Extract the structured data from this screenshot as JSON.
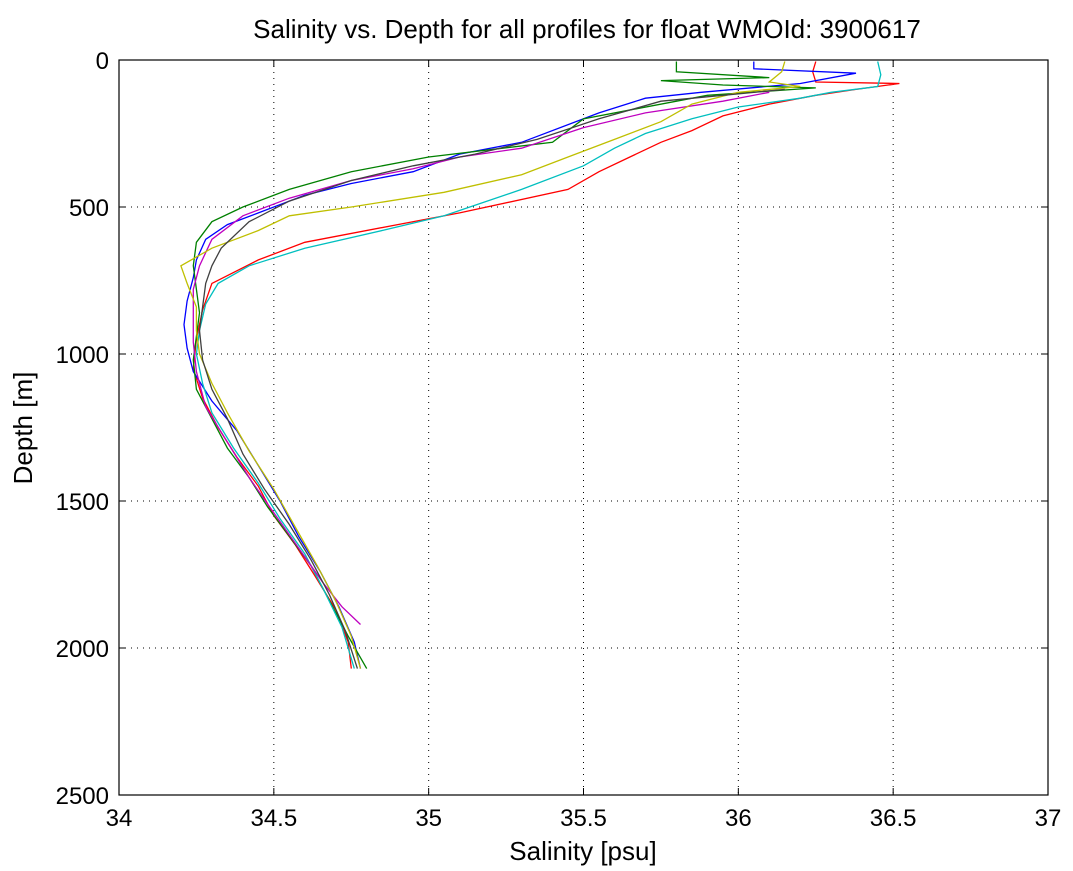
{
  "chart_data": {
    "type": "line",
    "title": "Salinity vs. Depth for all profiles for float WMOId: 3900617",
    "xlabel": "Salinity [psu]",
    "ylabel": "Depth [m]",
    "xlim": [
      34,
      37
    ],
    "ylim": [
      0,
      2500
    ],
    "y_reversed": true,
    "x_ticks": [
      "34",
      "34.5",
      "35",
      "35.5",
      "36",
      "36.5",
      "37"
    ],
    "y_ticks": [
      "0",
      "500",
      "1000",
      "1500",
      "2000",
      "2500"
    ],
    "grid": true,
    "series": [
      {
        "color": "#ff0000",
        "points": [
          [
            36.25,
            5
          ],
          [
            36.24,
            40
          ],
          [
            36.25,
            75
          ],
          [
            36.52,
            80
          ],
          [
            36.38,
            100
          ],
          [
            36.25,
            120
          ],
          [
            36.1,
            150
          ],
          [
            35.95,
            190
          ],
          [
            35.85,
            240
          ],
          [
            35.75,
            280
          ],
          [
            35.65,
            330
          ],
          [
            35.55,
            380
          ],
          [
            35.45,
            440
          ],
          [
            35.1,
            520
          ],
          [
            34.9,
            560
          ],
          [
            34.6,
            620
          ],
          [
            34.45,
            680
          ],
          [
            34.3,
            760
          ],
          [
            34.27,
            850
          ],
          [
            34.25,
            950
          ],
          [
            34.24,
            1050
          ],
          [
            34.27,
            1150
          ],
          [
            34.32,
            1250
          ],
          [
            34.38,
            1350
          ],
          [
            34.45,
            1450
          ],
          [
            34.5,
            1550
          ],
          [
            34.57,
            1650
          ],
          [
            34.63,
            1750
          ],
          [
            34.7,
            1870
          ],
          [
            34.74,
            1980
          ],
          [
            34.75,
            2070
          ]
        ]
      },
      {
        "color": "#0000ff",
        "points": [
          [
            36.05,
            5
          ],
          [
            36.05,
            30
          ],
          [
            36.38,
            45
          ],
          [
            36.2,
            80
          ],
          [
            35.88,
            110
          ],
          [
            35.7,
            130
          ],
          [
            35.55,
            180
          ],
          [
            35.3,
            280
          ],
          [
            35.1,
            320
          ],
          [
            34.95,
            380
          ],
          [
            34.75,
            420
          ],
          [
            34.6,
            460
          ],
          [
            34.45,
            520
          ],
          [
            34.35,
            560
          ],
          [
            34.28,
            610
          ],
          [
            34.25,
            680
          ],
          [
            34.24,
            740
          ],
          [
            34.22,
            820
          ],
          [
            34.21,
            900
          ],
          [
            34.22,
            980
          ],
          [
            34.24,
            1060
          ],
          [
            34.3,
            1160
          ],
          [
            34.38,
            1260
          ],
          [
            34.45,
            1380
          ],
          [
            34.52,
            1500
          ],
          [
            34.58,
            1620
          ],
          [
            34.65,
            1740
          ],
          [
            34.71,
            1860
          ],
          [
            34.76,
            1980
          ],
          [
            34.78,
            2070
          ]
        ]
      },
      {
        "color": "#008000",
        "points": [
          [
            35.8,
            5
          ],
          [
            35.8,
            40
          ],
          [
            36.1,
            60
          ],
          [
            35.75,
            70
          ],
          [
            35.95,
            85
          ],
          [
            36.25,
            95
          ],
          [
            35.9,
            120
          ],
          [
            35.5,
            200
          ],
          [
            35.4,
            280
          ],
          [
            35.0,
            330
          ],
          [
            34.75,
            380
          ],
          [
            34.55,
            440
          ],
          [
            34.4,
            500
          ],
          [
            34.3,
            550
          ],
          [
            34.25,
            620
          ],
          [
            34.24,
            700
          ],
          [
            34.25,
            780
          ],
          [
            34.26,
            860
          ],
          [
            34.25,
            940
          ],
          [
            34.24,
            1020
          ],
          [
            34.25,
            1120
          ],
          [
            34.3,
            1220
          ],
          [
            34.35,
            1320
          ],
          [
            34.42,
            1420
          ],
          [
            34.48,
            1520
          ],
          [
            34.55,
            1620
          ],
          [
            34.62,
            1720
          ],
          [
            34.68,
            1840
          ],
          [
            34.74,
            1960
          ],
          [
            34.8,
            2070
          ]
        ]
      },
      {
        "color": "#00bfbf",
        "points": [
          [
            36.45,
            5
          ],
          [
            36.46,
            50
          ],
          [
            36.45,
            90
          ],
          [
            36.3,
            110
          ],
          [
            36.2,
            130
          ],
          [
            36.0,
            160
          ],
          [
            35.85,
            200
          ],
          [
            35.7,
            250
          ],
          [
            35.6,
            300
          ],
          [
            35.5,
            360
          ],
          [
            35.3,
            440
          ],
          [
            35.05,
            530
          ],
          [
            34.85,
            580
          ],
          [
            34.6,
            640
          ],
          [
            34.42,
            700
          ],
          [
            34.32,
            760
          ],
          [
            34.28,
            830
          ],
          [
            34.26,
            920
          ],
          [
            34.25,
            1000
          ],
          [
            34.27,
            1100
          ],
          [
            34.3,
            1200
          ],
          [
            34.37,
            1320
          ],
          [
            34.45,
            1440
          ],
          [
            34.52,
            1560
          ],
          [
            34.6,
            1680
          ],
          [
            34.66,
            1800
          ],
          [
            34.72,
            1930
          ],
          [
            34.76,
            2070
          ]
        ]
      },
      {
        "color": "#bf00bf",
        "points": [
          [
            36.1,
            110
          ],
          [
            35.95,
            140
          ],
          [
            35.7,
            180
          ],
          [
            35.5,
            230
          ],
          [
            35.3,
            300
          ],
          [
            35.1,
            330
          ],
          [
            34.95,
            370
          ],
          [
            34.75,
            410
          ],
          [
            34.55,
            470
          ],
          [
            34.4,
            530
          ],
          [
            34.3,
            610
          ],
          [
            34.26,
            700
          ],
          [
            34.24,
            780
          ],
          [
            34.24,
            860
          ],
          [
            34.24,
            960
          ],
          [
            34.25,
            1060
          ],
          [
            34.28,
            1180
          ],
          [
            34.35,
            1300
          ],
          [
            34.42,
            1420
          ],
          [
            34.5,
            1540
          ],
          [
            34.58,
            1660
          ],
          [
            34.66,
            1780
          ],
          [
            34.72,
            1860
          ],
          [
            34.78,
            1920
          ]
        ]
      },
      {
        "color": "#bfbf00",
        "points": [
          [
            36.15,
            5
          ],
          [
            36.14,
            40
          ],
          [
            36.1,
            75
          ],
          [
            36.2,
            90
          ],
          [
            36.0,
            110
          ],
          [
            35.85,
            150
          ],
          [
            35.75,
            210
          ],
          [
            35.6,
            270
          ],
          [
            35.45,
            330
          ],
          [
            35.3,
            390
          ],
          [
            35.05,
            450
          ],
          [
            34.75,
            500
          ],
          [
            34.55,
            530
          ],
          [
            34.45,
            580
          ],
          [
            34.3,
            640
          ],
          [
            34.2,
            700
          ],
          [
            34.22,
            760
          ],
          [
            34.25,
            840
          ],
          [
            34.25,
            920
          ],
          [
            34.26,
            1000
          ],
          [
            34.3,
            1100
          ],
          [
            34.35,
            1200
          ],
          [
            34.42,
            1330
          ],
          [
            34.5,
            1460
          ],
          [
            34.57,
            1590
          ],
          [
            34.64,
            1720
          ],
          [
            34.7,
            1840
          ],
          [
            34.75,
            1960
          ],
          [
            34.78,
            2070
          ]
        ]
      },
      {
        "color": "#404040",
        "points": [
          [
            36.15,
            100
          ],
          [
            35.95,
            120
          ],
          [
            35.75,
            140
          ],
          [
            35.55,
            200
          ],
          [
            35.35,
            270
          ],
          [
            35.15,
            320
          ],
          [
            34.95,
            360
          ],
          [
            34.75,
            410
          ],
          [
            34.55,
            480
          ],
          [
            34.42,
            550
          ],
          [
            34.33,
            640
          ],
          [
            34.3,
            700
          ],
          [
            34.28,
            760
          ],
          [
            34.27,
            840
          ],
          [
            34.26,
            920
          ],
          [
            34.27,
            1020
          ],
          [
            34.3,
            1120
          ],
          [
            34.35,
            1220
          ],
          [
            34.4,
            1340
          ],
          [
            34.47,
            1460
          ],
          [
            34.55,
            1580
          ],
          [
            34.62,
            1700
          ],
          [
            34.68,
            1820
          ],
          [
            34.73,
            1940
          ],
          [
            34.77,
            2070
          ]
        ]
      }
    ]
  }
}
